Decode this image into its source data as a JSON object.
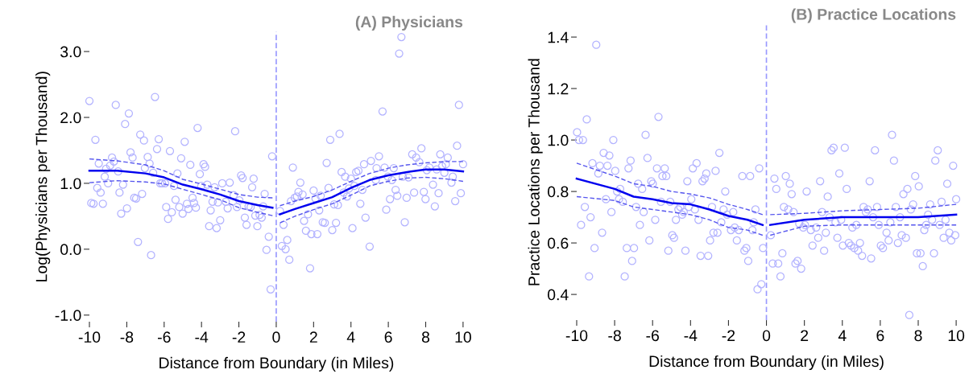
{
  "chart_data": [
    {
      "type": "scatter",
      "title": "(A) Physicians",
      "xlabel": "Distance from Boundary (in Miles)",
      "ylabel": "Log(Physicians per Thousand)",
      "xlim": [
        -10,
        10
      ],
      "xticks": [
        -10,
        -8,
        -6,
        -4,
        -2,
        0,
        2,
        4,
        6,
        8,
        10
      ],
      "ylim": [
        -1.1,
        3.3
      ],
      "yticks": [
        {
          "value": -1.0,
          "label": "-1.0"
        },
        {
          "value": 0.0,
          "label": "0.0"
        },
        {
          "value": 1.0,
          "label": "1.0"
        },
        {
          "value": 2.0,
          "label": "2.0"
        },
        {
          "value": 3.0,
          "label": "3.0"
        }
      ],
      "grid": false,
      "legend": false,
      "ref_lines": [
        {
          "axis": "x",
          "value": 0,
          "color": "#9999ff",
          "line_style": "dashed"
        }
      ],
      "series": [
        {
          "color": "#b3b3ff",
          "marker": "circle",
          "x": [
            -10.0,
            -9.68,
            -8.59,
            -7.89,
            -8.09,
            -6.49,
            -7.28,
            -7.08,
            -6.29,
            -6.38,
            -5.69,
            -4.21,
            -4.9,
            -5.09,
            -4.6,
            -2.2,
            -7.8,
            -7.69,
            -8.79,
            -9.5,
            -8.69,
            -9.11,
            -8.89,
            -8.46,
            -9.18,
            -9.0,
            -8.2,
            -9.58,
            -9.4,
            -8.39,
            -9.9,
            -9.78,
            -9.28,
            -7.6,
            -7.5,
            -7.18,
            -7.99,
            -8.3,
            -6.88,
            -6.78,
            -7.03,
            -6.59,
            -6.21,
            -6.11,
            -5.95,
            -5.47,
            -5.29,
            -5.39,
            -5.89,
            -5.59,
            -5.79,
            -5.19,
            -5.01,
            -4.78,
            -4.48,
            -4.7,
            -4.4,
            -4.3,
            -4.09,
            -3.89,
            -3.81,
            -3.69,
            -4.01,
            -3.3,
            -2.89,
            -2.49,
            -3.41,
            -3.51,
            -3.59,
            -3.19,
            -3.0,
            -3.12,
            -2.7,
            -2.6,
            -2.28,
            -2.1,
            -1.88,
            -1.8,
            -1.21,
            -1.29,
            -1.97,
            -1.48,
            -1.37,
            -1.68,
            -1.59,
            -1.01,
            -1.12,
            -0.89,
            -0.78,
            -0.62,
            -0.7,
            -7.4,
            -6.7,
            -0.4,
            -0.52,
            -0.3,
            -0.22,
            6.7,
            6.58,
            9.78,
            5.69,
            3.39,
            2.89,
            9.68,
            7.77,
            7.28,
            8.78,
            9.18,
            5.5,
            7.49,
            10.0,
            2.7,
            0.89,
            5.07,
            4.7,
            4.4,
            4.28,
            3.5,
            3.69,
            4.0,
            5.37,
            5.8,
            6.29,
            6.19,
            5.98,
            5.33,
            6.77,
            7.08,
            7.66,
            8.06,
            8.2,
            8.59,
            8.88,
            9.08,
            9.0,
            9.45,
            9.38,
            8.39,
            7.38,
            7.9,
            7.99,
            8.69,
            8.49,
            9.58,
            9.88,
            6.39,
            6.48,
            6.98,
            6.09,
            5.89,
            6.88,
            4.61,
            4.18,
            3.89,
            3.79,
            4.5,
            4.78,
            5.0,
            4.08,
            3.61,
            3.1,
            3.3,
            3.2,
            3.0,
            2.8,
            2.49,
            2.6,
            2.38,
            2.3,
            2.0,
            2.1,
            1.7,
            1.49,
            1.59,
            1.88,
            2.2,
            1.81,
            1.29,
            1.19,
            1.41,
            0.99,
            1.11,
            0.79,
            0.2,
            0.39,
            0.59,
            0.3,
            0.5,
            0.7
          ],
          "values": [
            2.25,
            1.66,
            2.19,
            2.06,
            1.9,
            2.31,
            1.74,
            1.65,
            1.67,
            1.52,
            1.49,
            1.84,
            1.63,
            1.38,
            1.28,
            1.79,
            1.47,
            1.39,
            1.39,
            1.3,
            1.33,
            1.22,
            1.27,
            1.18,
            1.1,
            1.0,
            0.98,
            0.93,
            0.86,
            0.86,
            0.7,
            0.69,
            0.69,
            0.78,
            0.77,
            0.84,
            0.62,
            0.54,
            1.4,
            1.3,
            1.23,
            1.16,
            1.0,
            1.0,
            1.0,
            0.96,
            1.15,
            0.75,
            0.64,
            0.56,
            0.46,
            0.64,
            0.54,
            0.69,
            0.78,
            0.61,
            0.7,
            0.63,
            1.14,
            1.29,
            1.25,
            0.98,
            0.96,
            0.94,
            1.0,
            1.01,
            0.72,
            0.59,
            0.35,
            0.32,
            0.44,
            0.71,
            0.72,
            0.62,
            0.82,
            0.64,
            1.12,
            1.08,
            1.07,
            0.94,
            0.74,
            0.65,
            0.64,
            0.48,
            0.37,
            0.35,
            0.51,
            0.52,
            0.48,
            0.84,
            0.65,
            0.11,
            -0.09,
            0.19,
            -0.01,
            -0.61,
            1.41,
            3.22,
            2.97,
            2.19,
            2.09,
            1.75,
            1.66,
            1.57,
            1.53,
            1.44,
            1.44,
            1.39,
            1.41,
            1.39,
            1.29,
            1.31,
            1.24,
            1.34,
            1.29,
            1.19,
            1.17,
            1.17,
            1.1,
            1.07,
            1.23,
            1.24,
            1.23,
            1.05,
            1.1,
            1.05,
            1.1,
            1.09,
            1.32,
            1.2,
            1.24,
            1.21,
            1.26,
            1.29,
            1.16,
            1.1,
            1.01,
            0.98,
            0.86,
            0.87,
            0.76,
            0.85,
            0.65,
            0.73,
            0.85,
            0.9,
            0.81,
            0.78,
            0.76,
            0.6,
            0.41,
            0.9,
            0.96,
            0.92,
            0.8,
            0.69,
            0.48,
            0.04,
            0.32,
            0.86,
            0.68,
            0.67,
            0.4,
            0.29,
            0.93,
            0.41,
            0.4,
            0.81,
            0.59,
            0.89,
            0.77,
            0.53,
            0.43,
            0.28,
            0.23,
            0.23,
            -0.29,
            1.01,
            0.87,
            0.83,
            0.78,
            0.8,
            0.73,
            0.58,
            0.37,
            0.14,
            0.05,
            0.0,
            -0.16
          ]
        },
        {
          "type": "line",
          "color": "#0000ee",
          "line_style": "solid",
          "marker": "none",
          "x": [
            -10,
            -8.5,
            -7,
            -6,
            -5,
            -4,
            -3,
            -2,
            -1,
            -0.2
          ],
          "values": [
            1.19,
            1.19,
            1.15,
            1.09,
            0.98,
            0.91,
            0.83,
            0.73,
            0.67,
            0.63
          ]
        },
        {
          "type": "line",
          "color": "#5555ee",
          "line_style": "dashed",
          "marker": "none",
          "x": [
            -10,
            -8.5,
            -7,
            -6,
            -5,
            -4,
            -3,
            -2,
            -1,
            -0.2
          ],
          "values": [
            1.37,
            1.34,
            1.28,
            1.19,
            1.06,
            0.99,
            0.91,
            0.83,
            0.79,
            0.78
          ]
        },
        {
          "type": "line",
          "color": "#5555ee",
          "line_style": "dashed",
          "marker": "none",
          "x": [
            -10,
            -8.5,
            -7,
            -6,
            -5,
            -4,
            -3,
            -2,
            -1,
            -0.2
          ],
          "values": [
            1.01,
            1.04,
            1.02,
            0.99,
            0.91,
            0.83,
            0.75,
            0.63,
            0.56,
            0.51
          ]
        },
        {
          "type": "line",
          "color": "#0000ee",
          "line_style": "solid",
          "marker": "none",
          "x": [
            0.2,
            1,
            2,
            3,
            4,
            5,
            6,
            7,
            8,
            9,
            10
          ],
          "values": [
            0.53,
            0.61,
            0.7,
            0.79,
            0.93,
            1.05,
            1.12,
            1.17,
            1.21,
            1.21,
            1.18
          ]
        },
        {
          "type": "line",
          "color": "#5555ee",
          "line_style": "dashed",
          "marker": "none",
          "x": [
            0.2,
            1,
            2,
            3,
            4,
            5,
            6,
            7,
            8,
            9,
            10
          ],
          "values": [
            0.66,
            0.73,
            0.8,
            0.9,
            1.03,
            1.15,
            1.23,
            1.28,
            1.31,
            1.33,
            1.33
          ]
        },
        {
          "type": "line",
          "color": "#5555ee",
          "line_style": "dashed",
          "marker": "none",
          "x": [
            0.2,
            1,
            2,
            3,
            4,
            5,
            6,
            7,
            8,
            9,
            10
          ],
          "values": [
            0.4,
            0.5,
            0.6,
            0.69,
            0.82,
            0.96,
            1.03,
            1.08,
            1.09,
            1.07,
            1.03
          ]
        }
      ]
    },
    {
      "type": "scatter",
      "title": "(B) Practice Locations",
      "xlabel": "Distance from Boundary (in Miles)",
      "ylabel": "Practice Locations per Thousand",
      "xlim": [
        -10,
        10
      ],
      "xticks": [
        -10,
        -8,
        -6,
        -4,
        -2,
        0,
        2,
        4,
        6,
        8,
        10
      ],
      "ylim": [
        0.3,
        1.45
      ],
      "yticks": [
        {
          "value": 0.4,
          "label": "0.4"
        },
        {
          "value": 0.6,
          "label": "0.6"
        },
        {
          "value": 0.8,
          "label": "0.8"
        },
        {
          "value": 1.0,
          "label": "1.0"
        },
        {
          "value": 1.2,
          "label": "1.2"
        },
        {
          "value": 1.4,
          "label": "1.4"
        }
      ],
      "grid": false,
      "legend": false,
      "ref_lines": [
        {
          "axis": "x",
          "value": 0,
          "color": "#9999ff",
          "line_style": "dashed"
        }
      ],
      "series": [
        {
          "color": "#b3b3ff",
          "marker": "circle",
          "x": [
            -8.97,
            -9.47,
            -9.98,
            -9.88,
            -9.67,
            -8.07,
            -5.69,
            -6.37,
            -6.27,
            -8.58,
            -8.28,
            -9.17,
            -8.78,
            -8.38,
            -8.86,
            -7.97,
            -7.16,
            -7.27,
            -5.77,
            -5.36,
            -5.48,
            -5.28,
            -6.07,
            -5.99,
            -6.76,
            -6.55,
            -7.71,
            -7.87,
            -8.46,
            -7.57,
            -7.77,
            -9.57,
            -8.17,
            -9.27,
            -9.77,
            -8.66,
            -9.06,
            -9.35,
            -7.47,
            -7.36,
            -6.98,
            -7.08,
            -6.87,
            -6.47,
            -6.67,
            -5.86,
            -6.17,
            -5.56,
            -5.07,
            -5.17,
            -4.96,
            -4.87,
            -4.77,
            -4.64,
            -4.54,
            -4.44,
            -4.36,
            -4.27,
            -4.17,
            -4.09,
            -3.96,
            -3.88,
            -3.77,
            -3.68,
            -3.58,
            -3.47,
            -3.37,
            -3.26,
            -3.17,
            -3.07,
            -2.97,
            -2.87,
            -2.79,
            -2.68,
            -2.58,
            -2.48,
            -2.38,
            -2.26,
            -2.17,
            -2.07,
            -1.87,
            -1.75,
            -1.67,
            -1.56,
            -1.46,
            -1.27,
            -1.16,
            -1.06,
            -0.96,
            -0.86,
            -0.74,
            -0.67,
            -0.58,
            -0.47,
            -0.27,
            -0.38,
            -0.18,
            6.62,
            4.13,
            3.54,
            3.43,
            5.72,
            9.03,
            8.9,
            6.72,
            9.84,
            0.42,
            1.02,
            0.52,
            1.23,
            1.33,
            2.83,
            3.84,
            4.23,
            2.12,
            3.23,
            5.44,
            7.84,
            8.03,
            7.43,
            7.22,
            9.53,
            10.0,
            9.23,
            8.63,
            7.73,
            0.92,
            1.15,
            1.43,
            2.93,
            5.12,
            5.34,
            5.24,
            5.83,
            6.82,
            7.61,
            3.33,
            3.94,
            3.64,
            5.62,
            7.04,
            8.52,
            8.73,
            9.44,
            6.53,
            1.73,
            2.03,
            1.94,
            2.34,
            2.62,
            3.13,
            4.53,
            4.74,
            5.92,
            8.42,
            9.13,
            8.32,
            2.73,
            3.74,
            2.43,
            3.04,
            4.03,
            4.34,
            4.46,
            4.63,
            4.83,
            4.93,
            5.04,
            5.52,
            6.03,
            6.14,
            6.33,
            6.44,
            6.93,
            7.13,
            7.35,
            7.93,
            8.12,
            8.24,
            8.83,
            9.34,
            9.64,
            9.74,
            9.95,
            0.23,
            0.33,
            0.62,
            0.84,
            0.74,
            1.53,
            1.64,
            1.83,
            7.53
          ],
          "values": [
            1.37,
            1.08,
            1.03,
            1.0,
            1.0,
            1.0,
            1.09,
            1.02,
            0.93,
            0.95,
            0.94,
            0.91,
            0.9,
            0.9,
            0.87,
            0.88,
            0.92,
            0.89,
            0.89,
            0.89,
            0.86,
            0.86,
            0.84,
            0.83,
            0.83,
            0.81,
            0.81,
            0.8,
            0.77,
            0.76,
            0.77,
            0.74,
            0.72,
            0.7,
            0.67,
            0.64,
            0.58,
            0.47,
            0.47,
            0.58,
            0.58,
            0.53,
            0.74,
            0.72,
            0.67,
            0.69,
            0.61,
            0.76,
            0.76,
            0.57,
            0.63,
            0.62,
            0.69,
            0.73,
            0.74,
            0.71,
            0.72,
            0.57,
            0.84,
            0.74,
            0.77,
            0.89,
            0.73,
            0.91,
            0.69,
            0.55,
            0.84,
            0.85,
            0.87,
            0.55,
            0.61,
            0.74,
            0.64,
            0.88,
            0.64,
            0.95,
            0.68,
            0.73,
            0.8,
            0.71,
            0.65,
            0.72,
            0.66,
            0.61,
            0.65,
            0.86,
            0.57,
            0.58,
            0.53,
            0.86,
            0.65,
            0.68,
            0.73,
            0.42,
            0.44,
            0.89,
            0.58,
            1.02,
            0.97,
            0.97,
            0.96,
            0.96,
            0.96,
            0.92,
            0.92,
            0.9,
            0.85,
            0.86,
            0.81,
            0.83,
            0.79,
            0.84,
            0.87,
            0.81,
            0.8,
            0.78,
            0.84,
            0.86,
            0.82,
            0.81,
            0.79,
            0.83,
            0.77,
            0.76,
            0.75,
            0.75,
            0.74,
            0.73,
            0.72,
            0.72,
            0.74,
            0.73,
            0.72,
            0.74,
            0.74,
            0.73,
            0.7,
            0.69,
            0.68,
            0.7,
            0.7,
            0.71,
            0.69,
            0.69,
            0.68,
            0.675,
            0.67,
            0.66,
            0.65,
            0.66,
            0.64,
            0.66,
            0.67,
            0.67,
            0.67,
            0.67,
            0.65,
            0.62,
            0.62,
            0.59,
            0.57,
            0.59,
            0.6,
            0.59,
            0.58,
            0.57,
            0.6,
            0.55,
            0.54,
            0.59,
            0.58,
            0.64,
            0.61,
            0.6,
            0.63,
            0.62,
            0.56,
            0.56,
            0.51,
            0.56,
            0.62,
            0.64,
            0.61,
            0.63,
            0.63,
            0.52,
            0.52,
            0.56,
            0.47,
            0.52,
            0.53,
            0.5,
            0.32
          ]
        },
        {
          "type": "line",
          "color": "#0000ee",
          "line_style": "solid",
          "marker": "none",
          "x": [
            -10,
            -8,
            -7,
            -6,
            -5,
            -4,
            -3,
            -2,
            -1,
            -0.2
          ],
          "values": [
            0.85,
            0.81,
            0.78,
            0.77,
            0.755,
            0.75,
            0.73,
            0.705,
            0.69,
            0.67
          ]
        },
        {
          "type": "line",
          "color": "#5555ee",
          "line_style": "dashed",
          "marker": "none",
          "x": [
            -10,
            -8,
            -7,
            -6,
            -5,
            -4,
            -3,
            -2,
            -1,
            -0.2
          ],
          "values": [
            0.91,
            0.86,
            0.83,
            0.82,
            0.8,
            0.79,
            0.775,
            0.75,
            0.73,
            0.71
          ]
        },
        {
          "type": "line",
          "color": "#5555ee",
          "line_style": "dashed",
          "marker": "none",
          "x": [
            -10,
            -8,
            -7,
            -6,
            -5,
            -4,
            -3,
            -2,
            -1,
            -0.2
          ],
          "values": [
            0.78,
            0.765,
            0.74,
            0.73,
            0.72,
            0.71,
            0.69,
            0.66,
            0.65,
            0.63
          ]
        },
        {
          "type": "line",
          "color": "#0000ee",
          "line_style": "solid",
          "marker": "none",
          "x": [
            0.2,
            2,
            4,
            6,
            8,
            10
          ],
          "values": [
            0.67,
            0.69,
            0.7,
            0.7,
            0.7,
            0.71
          ]
        },
        {
          "type": "line",
          "color": "#5555ee",
          "line_style": "dashed",
          "marker": "none",
          "x": [
            0.2,
            2,
            4,
            6,
            8,
            10
          ],
          "values": [
            0.71,
            0.715,
            0.725,
            0.73,
            0.735,
            0.75
          ]
        },
        {
          "type": "line",
          "color": "#5555ee",
          "line_style": "dashed",
          "marker": "none",
          "x": [
            0.2,
            2,
            4,
            6,
            8,
            10
          ],
          "values": [
            0.63,
            0.665,
            0.67,
            0.67,
            0.67,
            0.67
          ]
        }
      ]
    }
  ]
}
